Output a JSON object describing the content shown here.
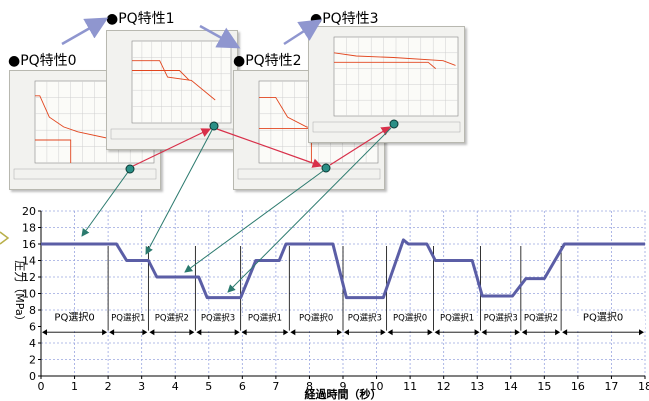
{
  "pq_panels": [
    {
      "label": "●PQ特性0",
      "profile": [
        [
          0,
          41
        ],
        [
          10,
          41
        ],
        [
          30,
          28
        ],
        [
          60,
          22
        ],
        [
          90,
          19
        ],
        [
          170,
          14
        ],
        [
          210,
          14
        ]
      ],
      "rect": [
        [
          0,
          14
        ],
        [
          75,
          14
        ],
        [
          75,
          0
        ]
      ]
    },
    {
      "label": "●PQ特性1",
      "profile": [
        [
          0,
          38
        ],
        [
          70,
          38
        ],
        [
          90,
          28
        ],
        [
          150,
          26
        ],
        [
          210,
          14
        ]
      ],
      "rect": [
        [
          0,
          32
        ],
        [
          120,
          32
        ],
        [
          145,
          26
        ]
      ]
    },
    {
      "label": "●PQ特性2",
      "profile": [
        [
          0,
          40
        ],
        [
          35,
          40
        ],
        [
          60,
          28
        ],
        [
          100,
          22
        ],
        [
          140,
          20
        ],
        [
          220,
          15
        ],
        [
          245,
          15
        ]
      ],
      "rect": [
        [
          0,
          21
        ],
        [
          110,
          21
        ],
        [
          110,
          0
        ]
      ]
    },
    {
      "label": "●PQ特性3",
      "profile": [
        [
          0,
          40
        ],
        [
          45,
          38
        ],
        [
          120,
          37
        ],
        [
          220,
          35
        ],
        [
          245,
          32
        ]
      ],
      "rect": [
        [
          0,
          34
        ],
        [
          190,
          34
        ],
        [
          205,
          30
        ]
      ]
    }
  ],
  "chart_data": {
    "type": "line",
    "xlabel": "経過時間（秒）",
    "ylabel": "圧力（MPa）",
    "xlim": [
      0,
      18
    ],
    "ylim": [
      0,
      20
    ],
    "xticks": [
      "0",
      "1",
      "2",
      "3",
      "4",
      "5",
      "6",
      "7",
      "8",
      "9",
      "10",
      "11",
      "12",
      "13",
      "14",
      "15",
      "16",
      "17",
      "18"
    ],
    "yticks": [
      "0",
      "2",
      "4",
      "6",
      "8",
      "10",
      "12",
      "14",
      "16",
      "18",
      "20"
    ],
    "grid": true,
    "series": [
      {
        "x": [
          0,
          2.25,
          2.55,
          3.2,
          3.45,
          4.05,
          4.7,
          4.95,
          5.95,
          6.4,
          7.1,
          7.3,
          8.7,
          9.1,
          10.2,
          10.8,
          10.95,
          11.5,
          11.75,
          12.85,
          13.15,
          14.05,
          14.45,
          15.0,
          15.6,
          18
        ],
        "values": [
          16,
          16,
          14,
          14,
          12,
          12,
          12,
          9.5,
          9.5,
          14,
          14,
          16,
          16,
          9.5,
          9.5,
          16.5,
          16,
          16,
          14,
          14,
          9.7,
          9.7,
          11.8,
          11.8,
          16,
          16
        ]
      }
    ],
    "segments": [
      {
        "label": "PQ選択0",
        "from": 0,
        "to": 2
      },
      {
        "label": "PQ選択1",
        "from": 2,
        "to": 3.2
      },
      {
        "label": "PQ選択2",
        "from": 3.2,
        "to": 4.6
      },
      {
        "label": "PQ選択3",
        "from": 4.6,
        "to": 5.95
      },
      {
        "label": "PQ選択1",
        "from": 5.95,
        "to": 7.4
      },
      {
        "label": "PQ選択0",
        "from": 7.4,
        "to": 9.0
      },
      {
        "label": "PQ選択3",
        "from": 9.0,
        "to": 10.3
      },
      {
        "label": "PQ選択0",
        "from": 10.3,
        "to": 11.7
      },
      {
        "label": "PQ選択1",
        "from": 11.7,
        "to": 13.1
      },
      {
        "label": "PQ選択3",
        "from": 13.1,
        "to": 14.3
      },
      {
        "label": "PQ選択2",
        "from": 14.3,
        "to": 15.5
      },
      {
        "label": "PQ選択0",
        "from": 15.5,
        "to": 18
      }
    ]
  }
}
